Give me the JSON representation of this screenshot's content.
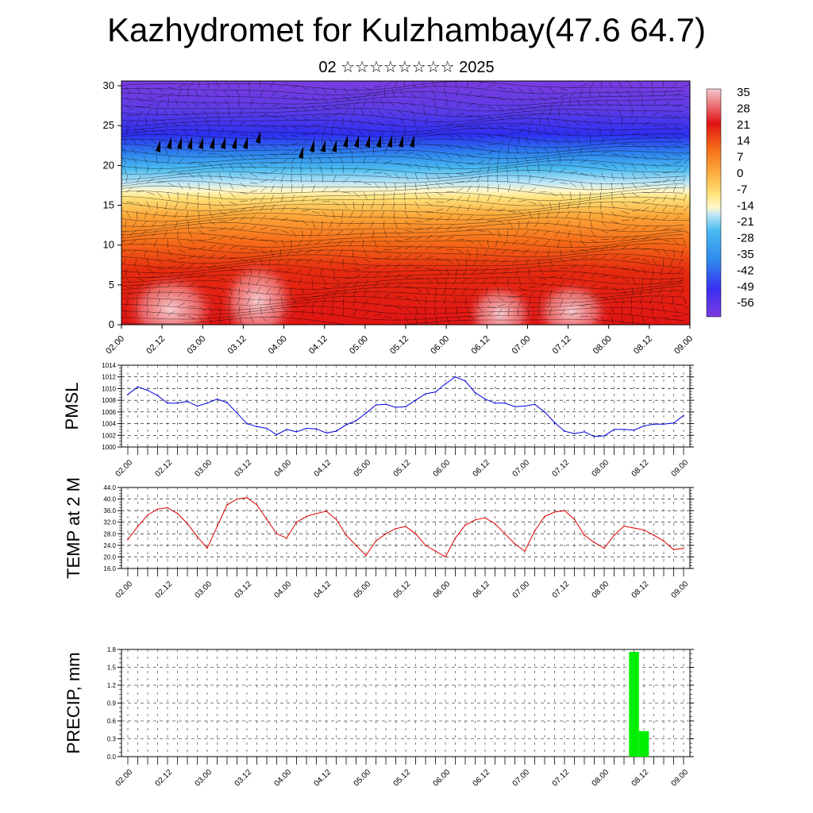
{
  "title": "Kazhydromet for Kulzhambay(47.6 64.7)",
  "subtitle": "02 ☆☆☆☆☆☆☆☆ 2025",
  "x_tick_labels": [
    "02.00",
    "02.12",
    "03.00",
    "03.12",
    "04.00",
    "04.12",
    "05.00",
    "05.12",
    "06.00",
    "06.12",
    "07.00",
    "07.12",
    "08.00",
    "08.12",
    "09.00"
  ],
  "colorbar": {
    "labels": [
      "35",
      "28",
      "21",
      "14",
      "7",
      "0",
      "-7",
      "-14",
      "-21",
      "-28",
      "-35",
      "-42",
      "-49",
      "-56"
    ],
    "colors": {
      "high": "#f4c8cf",
      "warm": "#e01010",
      "orange": "#f78a1a",
      "yellow": "#ffe97a",
      "ice": "#bfe6f5",
      "cyan": "#3cb2ef",
      "blue": "#3a45ee",
      "violet": "#7b3be0"
    }
  },
  "chart_data": [
    {
      "type": "heatmap",
      "title": "",
      "ylim": [
        0,
        30
      ],
      "y_tick_labels": [
        "0",
        "5",
        "10",
        "15",
        "20",
        "25",
        "30"
      ],
      "x_tick_labels": [
        "02.00",
        "02.12",
        "03.00",
        "03.12",
        "04.00",
        "04.12",
        "05.00",
        "05.12",
        "06.00",
        "06.12",
        "07.00",
        "07.12",
        "08.00",
        "08.12",
        "09.00"
      ],
      "color_scale": [
        -56,
        35
      ]
    },
    {
      "type": "line",
      "ylabel": "PMSL",
      "ylim": [
        1000,
        1014
      ],
      "y_tick_labels": [
        "1000",
        "1002",
        "1004",
        "1006",
        "1008",
        "1010",
        "1012",
        "1014"
      ],
      "x_tick_labels": [
        "02.00",
        "02.12",
        "03.00",
        "03.12",
        "04.00",
        "04.12",
        "05.00",
        "05.12",
        "06.00",
        "06.12",
        "07.00",
        "07.12",
        "08.00",
        "08.12",
        "09.00"
      ],
      "grid": true,
      "color": "#0000dd",
      "values": [
        1009.0,
        1010.3,
        1009.7,
        1008.8,
        1007.5,
        1007.5,
        1007.8,
        1007.0,
        1007.5,
        1008.2,
        1007.6,
        1005.8,
        1004.0,
        1003.5,
        1003.2,
        1002.1,
        1003.0,
        1002.6,
        1003.2,
        1003.1,
        1002.4,
        1002.7,
        1003.8,
        1004.5,
        1005.8,
        1007.2,
        1007.3,
        1006.8,
        1006.9,
        1008.0,
        1009.1,
        1009.4,
        1010.8,
        1012.0,
        1011.3,
        1009.3,
        1008.2,
        1007.5,
        1007.5,
        1006.9,
        1007.0,
        1007.3,
        1006.0,
        1004.2,
        1002.7,
        1002.3,
        1002.6,
        1001.8,
        1001.9,
        1003.0,
        1003.0,
        1002.9,
        1003.6,
        1003.9,
        1003.9,
        1004.1,
        1005.4
      ]
    },
    {
      "type": "line",
      "ylabel": "TEMP at 2 M",
      "ylim": [
        16,
        44
      ],
      "y_tick_labels": [
        "16.0",
        "20.0",
        "24.0",
        "28.0",
        "32.0",
        "36.0",
        "40.0",
        "44.0"
      ],
      "x_tick_labels": [
        "02.00",
        "02.12",
        "03.00",
        "03.12",
        "04.00",
        "04.12",
        "05.00",
        "05.12",
        "06.00",
        "06.12",
        "07.00",
        "07.12",
        "08.00",
        "08.12",
        "09.00"
      ],
      "grid": true,
      "color": "#dd0000",
      "values": [
        26.0,
        30.5,
        34.5,
        36.5,
        37.0,
        35.0,
        31.5,
        27.0,
        23.0,
        30.5,
        38.0,
        40.0,
        40.5,
        38.0,
        33.0,
        28.0,
        26.5,
        32.0,
        34.0,
        35.0,
        35.8,
        33.0,
        27.5,
        24.0,
        20.5,
        25.5,
        28.0,
        29.8,
        30.5,
        28.0,
        24.0,
        22.0,
        20.0,
        26.5,
        31.0,
        32.8,
        33.5,
        31.5,
        28.0,
        24.5,
        22.0,
        29.0,
        34.0,
        35.5,
        36.0,
        33.0,
        27.5,
        25.0,
        23.0,
        27.5,
        30.6,
        30.0,
        29.3,
        27.5,
        25.5,
        22.5,
        23.0
      ]
    },
    {
      "type": "bar",
      "ylabel": "PRECIP, mm",
      "ylim": [
        0,
        1.8
      ],
      "y_tick_labels": [
        "0.0",
        "0.3",
        "0.6",
        "0.9",
        "1.2",
        "1.5",
        "1.8"
      ],
      "x_tick_labels": [
        "02.00",
        "02.12",
        "03.00",
        "03.12",
        "04.00",
        "04.12",
        "05.00",
        "05.12",
        "06.00",
        "06.12",
        "07.00",
        "07.12",
        "08.00",
        "08.12",
        "09.00"
      ],
      "grid": true,
      "color": "#00ee00",
      "values": [
        0,
        0,
        0,
        0,
        0,
        0,
        0,
        0,
        0,
        0,
        0,
        0,
        0,
        0,
        0,
        0,
        0,
        0,
        0,
        0,
        0,
        0,
        0,
        0,
        0,
        0,
        0,
        0,
        0,
        0,
        0,
        0,
        0,
        0,
        0,
        0,
        0,
        0,
        0,
        0,
        0,
        0,
        0,
        0,
        0,
        0,
        0,
        0,
        0,
        0,
        0,
        1.76,
        0.43,
        0,
        0,
        0,
        0
      ]
    }
  ]
}
